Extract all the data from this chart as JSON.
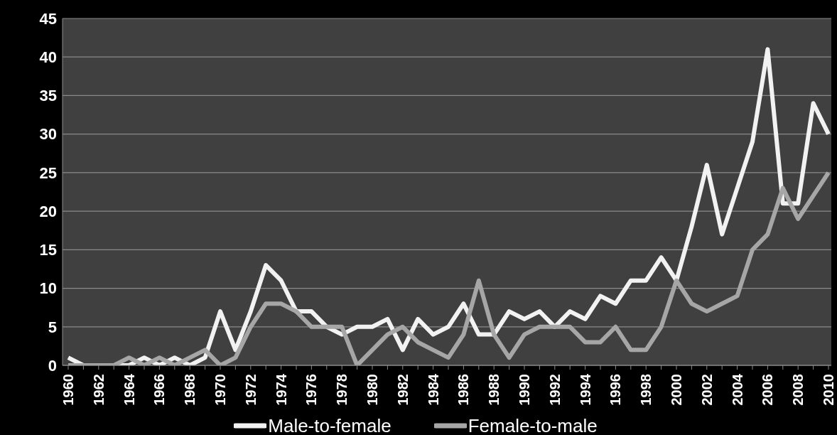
{
  "chart_data": {
    "type": "line",
    "categories": [
      "1960",
      null,
      "1962",
      null,
      "1964",
      null,
      "1966",
      null,
      "1968",
      null,
      "1970",
      null,
      "1972",
      null,
      "1974",
      null,
      "1976",
      null,
      "1978",
      null,
      "1980",
      null,
      "1982",
      null,
      "1984",
      null,
      "1986",
      null,
      "1988",
      null,
      "1990",
      null,
      "1992",
      null,
      "1994",
      null,
      "1996",
      null,
      "1998",
      null,
      "2000",
      null,
      "2002",
      null,
      "2004",
      null,
      "2006",
      null,
      "2008",
      null,
      "2010"
    ],
    "series": [
      {
        "name": "Male-to-female",
        "color": "#f2f2f2",
        "values": [
          1,
          0,
          0,
          0,
          0,
          1,
          0,
          1,
          0,
          1,
          7,
          2,
          7,
          13,
          11,
          7,
          7,
          5,
          4,
          5,
          5,
          6,
          2,
          6,
          4,
          5,
          8,
          4,
          4,
          7,
          6,
          7,
          5,
          7,
          6,
          9,
          8,
          11,
          11,
          14,
          11,
          18,
          26,
          17,
          23,
          29,
          41,
          21,
          21,
          34,
          30
        ]
      },
      {
        "name": "Female-to-male",
        "color": "#a6a6a6",
        "values": [
          0,
          0,
          0,
          0,
          1,
          0,
          1,
          0,
          1,
          2,
          0,
          1,
          5,
          8,
          8,
          7,
          5,
          5,
          5,
          0,
          2,
          4,
          5,
          3,
          2,
          1,
          4,
          11,
          4,
          1,
          4,
          5,
          5,
          5,
          3,
          3,
          5,
          2,
          2,
          5,
          11,
          8,
          7,
          8,
          9,
          15,
          17,
          23,
          19,
          22,
          25
        ]
      }
    ],
    "ylim": [
      0,
      45
    ],
    "yticks": [
      0,
      5,
      10,
      15,
      20,
      25,
      30,
      35,
      40,
      45
    ],
    "grid": "y",
    "legend": "bottom",
    "marker": "none",
    "line_style": "solid"
  }
}
